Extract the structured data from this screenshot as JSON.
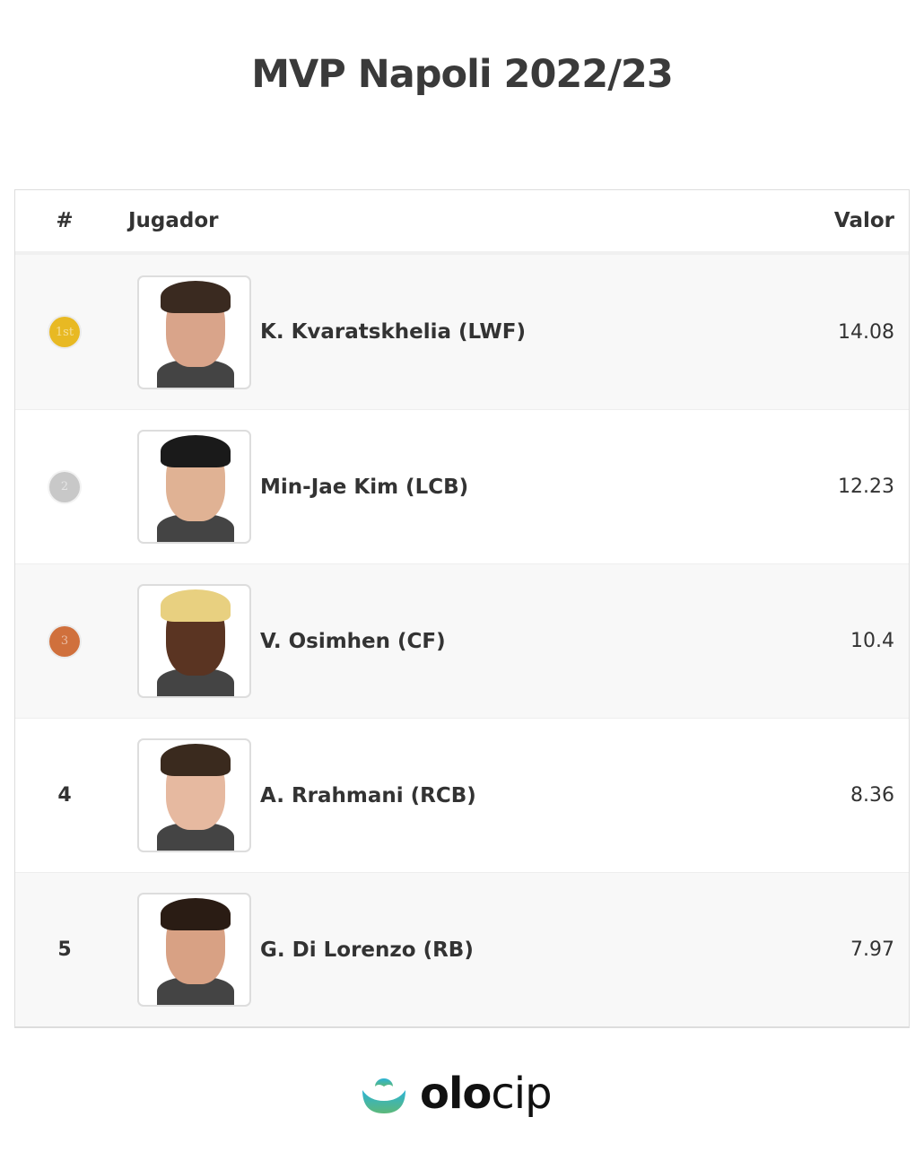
{
  "title": "MVP Napoli 2022/23",
  "table": {
    "headers": {
      "rank": "#",
      "player": "Jugador",
      "value": "Valor"
    },
    "rows": [
      {
        "rank": "1",
        "medal": "gold",
        "medal_label": "1st",
        "name": "K. Kvaratskhelia (LWF)",
        "value": "14.08"
      },
      {
        "rank": "2",
        "medal": "silver",
        "medal_label": "2",
        "name": "Min-Jae Kim (LCB)",
        "value": "12.23"
      },
      {
        "rank": "3",
        "medal": "bronze",
        "medal_label": "3",
        "name": "V. Osimhen (CF)",
        "value": "10.4"
      },
      {
        "rank": "4",
        "name": "A. Rrahmani (RCB)",
        "value": "8.36"
      },
      {
        "rank": "5",
        "name": "G. Di Lorenzo (RB)",
        "value": "7.97"
      }
    ]
  },
  "colors": {
    "gold": "#e8b923",
    "silver": "#c8c8c8",
    "bronze": "#d0703c",
    "brand_top": "#2bb3d6",
    "brand_bottom": "#5db87a"
  },
  "logo": {
    "bold": "olo",
    "light": "cip"
  }
}
